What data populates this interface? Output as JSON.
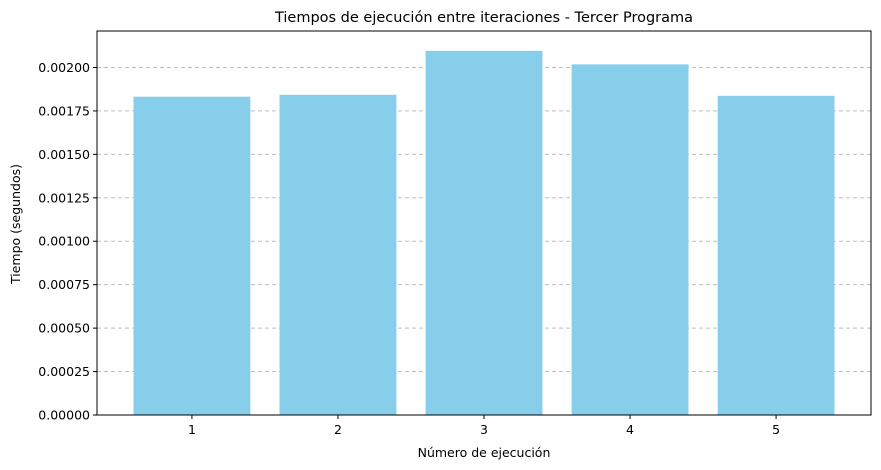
{
  "chart_data": {
    "type": "bar",
    "title": "Tiempos de ejecución entre iteraciones - Tercer Programa",
    "xlabel": "Número de ejecución",
    "ylabel": "Tiempo (segundos)",
    "categories": [
      "1",
      "2",
      "3",
      "4",
      "5"
    ],
    "values": [
      0.001832,
      0.001843,
      0.002096,
      0.002018,
      0.001837
    ],
    "ylim": [
      0,
      0.00221
    ],
    "yticks": [
      0.0,
      0.00025,
      0.0005,
      0.00075,
      0.001,
      0.00125,
      0.0015,
      0.00175,
      0.002
    ],
    "ytick_labels": [
      "0.00000",
      "0.00025",
      "0.00050",
      "0.00075",
      "0.00100",
      "0.00125",
      "0.00150",
      "0.00175",
      "0.00200"
    ],
    "grid": "y-dashed",
    "bar_color": "#87ceeb"
  }
}
